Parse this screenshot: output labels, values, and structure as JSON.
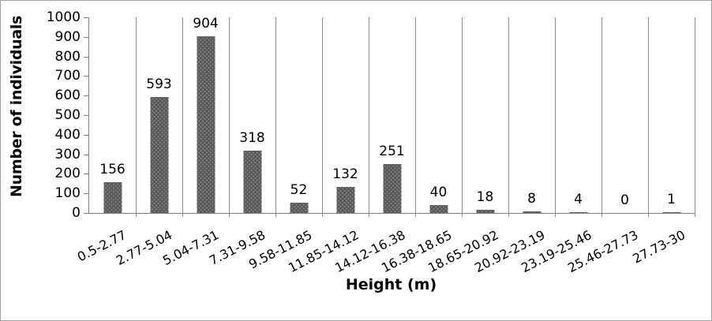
{
  "chart_data": {
    "type": "bar",
    "title": "",
    "xlabel": "Height (m)",
    "ylabel": "Number of individuals",
    "categories": [
      "0.5-2.77",
      "2.77-5.04",
      "5.04-7.31",
      "7.31-9.58",
      "9.58-11.85",
      "11.85-14.12",
      "14.12-16.38",
      "16.38-18.65",
      "18.65-20.92",
      "20.92-23.19",
      "23.19-25.46",
      "25.46-27.73",
      "27.73-30"
    ],
    "values": [
      156,
      593,
      904,
      318,
      52,
      132,
      251,
      40,
      18,
      8,
      4,
      0,
      1
    ],
    "data_labels_visible": true,
    "ylim": [
      0,
      1000
    ],
    "yticks": [
      0,
      100,
      200,
      300,
      400,
      500,
      600,
      700,
      800,
      900,
      1000
    ],
    "legend": null,
    "grid": "vertical-category-separators",
    "colors": {
      "bar": "#595959",
      "bar_dots": "#858585",
      "axis": "#7f7f7f",
      "separator": "#8c8c8c",
      "text": "#000000",
      "frame_border": "#a0a0a0",
      "background": "#ffffff"
    }
  }
}
